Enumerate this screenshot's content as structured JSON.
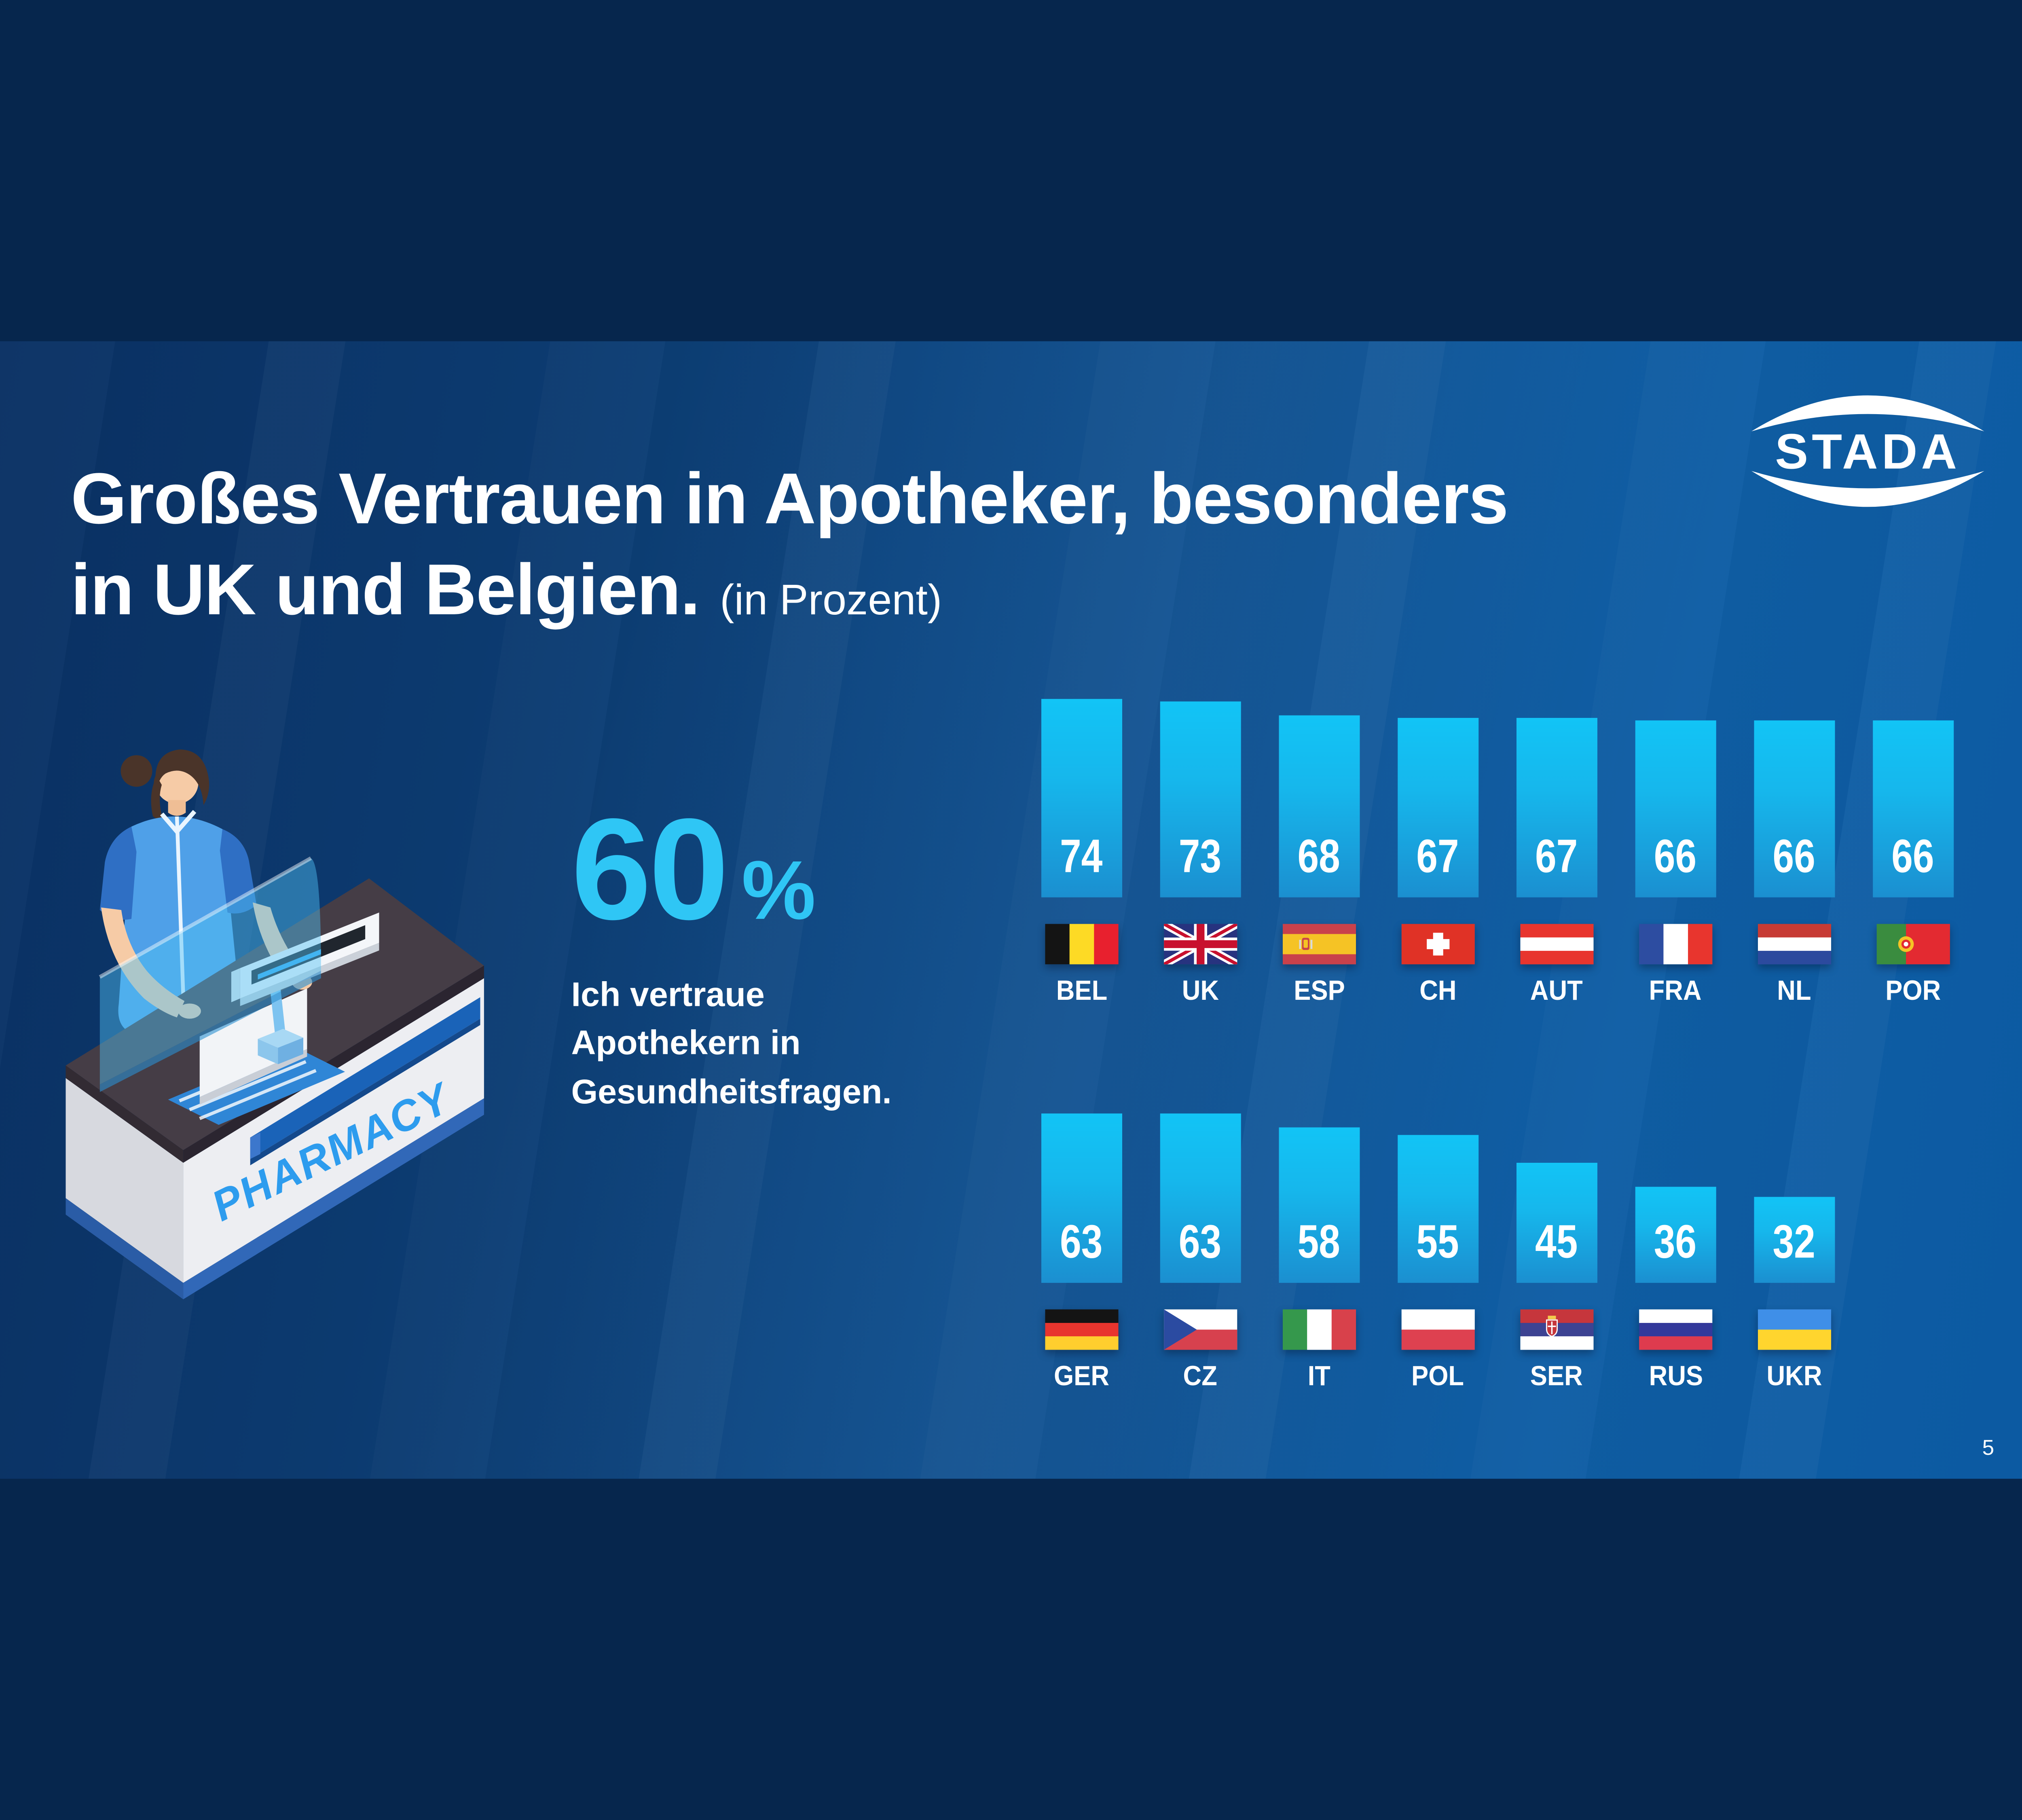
{
  "slide": {
    "title": {
      "line1": "Großes Vertrauen in Apotheker, besonders",
      "line2": "in UK und Belgien.",
      "suffix": "(in Prozent)"
    },
    "logo": {
      "text": "STADA"
    },
    "stat": {
      "value": "60",
      "unit": "%",
      "caption_line1": "Ich vertraue",
      "caption_line2": "Apothekern in",
      "caption_line3": "Gesundheitsfragen."
    },
    "illustration": {
      "sign_text": "PHARMACY"
    },
    "page_number": "5"
  },
  "colors": {
    "background_dark": "#0A3164",
    "background_light": "#0C5AA2",
    "accent_cyan": "#2FC6F5",
    "bar_top": "#12C4F6",
    "bar_bottom": "#1B8FD0",
    "counter_sign_blue": "#2D9CEE",
    "text_white": "#FFFFFF"
  },
  "chart_data": {
    "type": "bar",
    "title": "Großes Vertrauen in Apotheker, besonders in UK und Belgien.",
    "unit": "percent",
    "statement": "Ich vertraue Apothekern in Gesundheitsfragen.",
    "overall_value": 60,
    "ylim": [
      0,
      100
    ],
    "grid": false,
    "value_labels": "inside bar bottom",
    "rows": [
      {
        "categories": [
          "BEL",
          "UK",
          "ESP",
          "CH",
          "AUT",
          "FRA",
          "NL",
          "POR"
        ],
        "values": [
          74,
          73,
          68,
          67,
          67,
          66,
          66,
          66
        ]
      },
      {
        "categories": [
          "GER",
          "CZ",
          "IT",
          "POL",
          "SER",
          "RUS",
          "UKR"
        ],
        "values": [
          63,
          63,
          58,
          55,
          45,
          36,
          32
        ]
      }
    ],
    "flags": {
      "BEL": {
        "kind": "v",
        "stripes": [
          "#141414",
          "#FDDA25",
          "#E8202E"
        ]
      },
      "UK": {
        "kind": "uk"
      },
      "ESP": {
        "kind": "h",
        "stripes": [
          "#C9414B",
          "#F5C325",
          "#C9414B"
        ],
        "ratios": [
          1,
          2,
          1
        ],
        "emblem": "esp"
      },
      "CH": {
        "kind": "ch"
      },
      "AUT": {
        "kind": "h",
        "stripes": [
          "#E8352E",
          "#FFFFFF",
          "#E8352E"
        ]
      },
      "FRA": {
        "kind": "v",
        "stripes": [
          "#2D4DA1",
          "#FFFFFF",
          "#E8352E"
        ]
      },
      "NL": {
        "kind": "h",
        "stripes": [
          "#C73B34",
          "#FFFFFF",
          "#2C4A9E"
        ]
      },
      "POR": {
        "kind": "v",
        "stripes": [
          "#3A8C3F",
          "#E32A31"
        ],
        "ratios": [
          2,
          3
        ],
        "emblem": "por"
      },
      "GER": {
        "kind": "h",
        "stripes": [
          "#141414",
          "#E8352E",
          "#FFCE2E"
        ]
      },
      "CZ": {
        "kind": "cz"
      },
      "IT": {
        "kind": "v",
        "stripes": [
          "#35984C",
          "#FFFFFF",
          "#D8414B"
        ]
      },
      "POL": {
        "kind": "h",
        "stripes": [
          "#FFFFFF",
          "#DE4150"
        ]
      },
      "SER": {
        "kind": "h",
        "stripes": [
          "#C6363C",
          "#3D4392",
          "#FFFFFF"
        ],
        "emblem": "ser"
      },
      "RUS": {
        "kind": "h",
        "stripes": [
          "#FFFFFF",
          "#33399B",
          "#DE3B4E"
        ]
      },
      "UKR": {
        "kind": "h",
        "stripes": [
          "#3F8FE8",
          "#FFD52E"
        ]
      }
    }
  }
}
